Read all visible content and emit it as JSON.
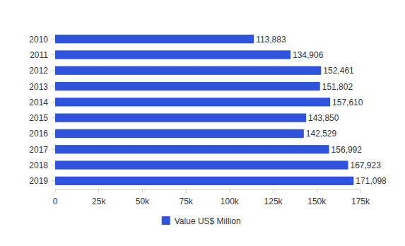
{
  "chart_data": {
    "type": "bar",
    "orientation": "horizontal",
    "categories": [
      "2010",
      "2011",
      "2012",
      "2013",
      "2014",
      "2015",
      "2016",
      "2017",
      "2018",
      "2019"
    ],
    "series": [
      {
        "name": "Value US$ Million",
        "color": "#2f54db",
        "values": [
          113883,
          134906,
          152461,
          151802,
          157610,
          143850,
          142529,
          156992,
          167923,
          171098
        ],
        "value_labels": [
          "113,883",
          "134,906",
          "152,461",
          "151,802",
          "157,610",
          "143,850",
          "142,529",
          "156,992",
          "167,923",
          "171,098"
        ]
      }
    ],
    "xlim": [
      0,
      175000
    ],
    "xticks": [
      0,
      {
        "value": 25000,
        "label": "25k"
      },
      {
        "value": 50000,
        "label": "50k"
      },
      {
        "value": 75000,
        "label": "75k"
      },
      {
        "value": 100000,
        "label": "100k"
      },
      {
        "value": 125000,
        "label": "125k"
      },
      {
        "value": 150000,
        "label": "150k"
      },
      {
        "value": 175000,
        "label": "175k"
      }
    ],
    "grid": false,
    "data_labels": true,
    "legend": "bottom"
  }
}
